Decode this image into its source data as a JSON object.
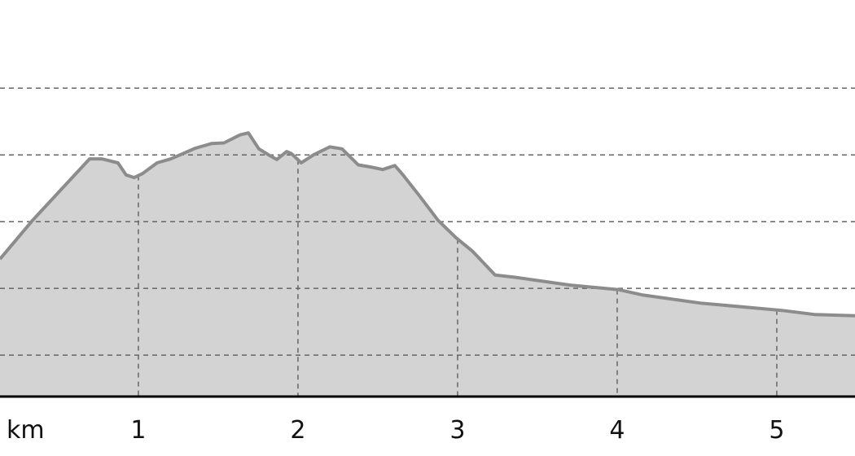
{
  "chart_data": {
    "type": "area",
    "title": "",
    "xlabel": "km",
    "ylabel": "",
    "x_ticks": [
      "1",
      "2",
      "3",
      "4",
      "5"
    ],
    "xlim": [
      0.133,
      5.49
    ],
    "ylim": [
      0.38,
      6.32
    ],
    "y_gridlines": [
      1,
      2,
      3,
      4,
      5
    ],
    "grid": true,
    "legend": "none",
    "colors": {
      "fill": "#d3d3d3",
      "line": "#8c8c8c",
      "grid": "#666666",
      "axis": "#000000"
    },
    "x": [
      0.133,
      0.337,
      0.694,
      0.77,
      0.872,
      0.923,
      0.974,
      1.026,
      1.117,
      1.204,
      1.357,
      1.459,
      1.536,
      1.638,
      1.689,
      1.755,
      1.816,
      1.867,
      1.929,
      1.959,
      2.02,
      2.097,
      2.199,
      2.276,
      2.378,
      2.454,
      2.531,
      2.607,
      2.658,
      2.76,
      2.878,
      2.99,
      3.092,
      3.235,
      3.347,
      3.704,
      4.01,
      4.163,
      4.52,
      5.031,
      5.235,
      5.49
    ],
    "y": [
      2.44,
      3.02,
      3.94,
      3.94,
      3.88,
      3.7,
      3.66,
      3.72,
      3.88,
      3.94,
      4.1,
      4.17,
      4.18,
      4.3,
      4.33,
      4.09,
      4.0,
      3.93,
      4.05,
      4.02,
      3.88,
      4.0,
      4.12,
      4.09,
      3.85,
      3.82,
      3.78,
      3.84,
      3.7,
      3.39,
      3.02,
      2.76,
      2.56,
      2.2,
      2.17,
      2.05,
      1.98,
      1.9,
      1.78,
      1.67,
      1.61,
      1.59
    ]
  }
}
